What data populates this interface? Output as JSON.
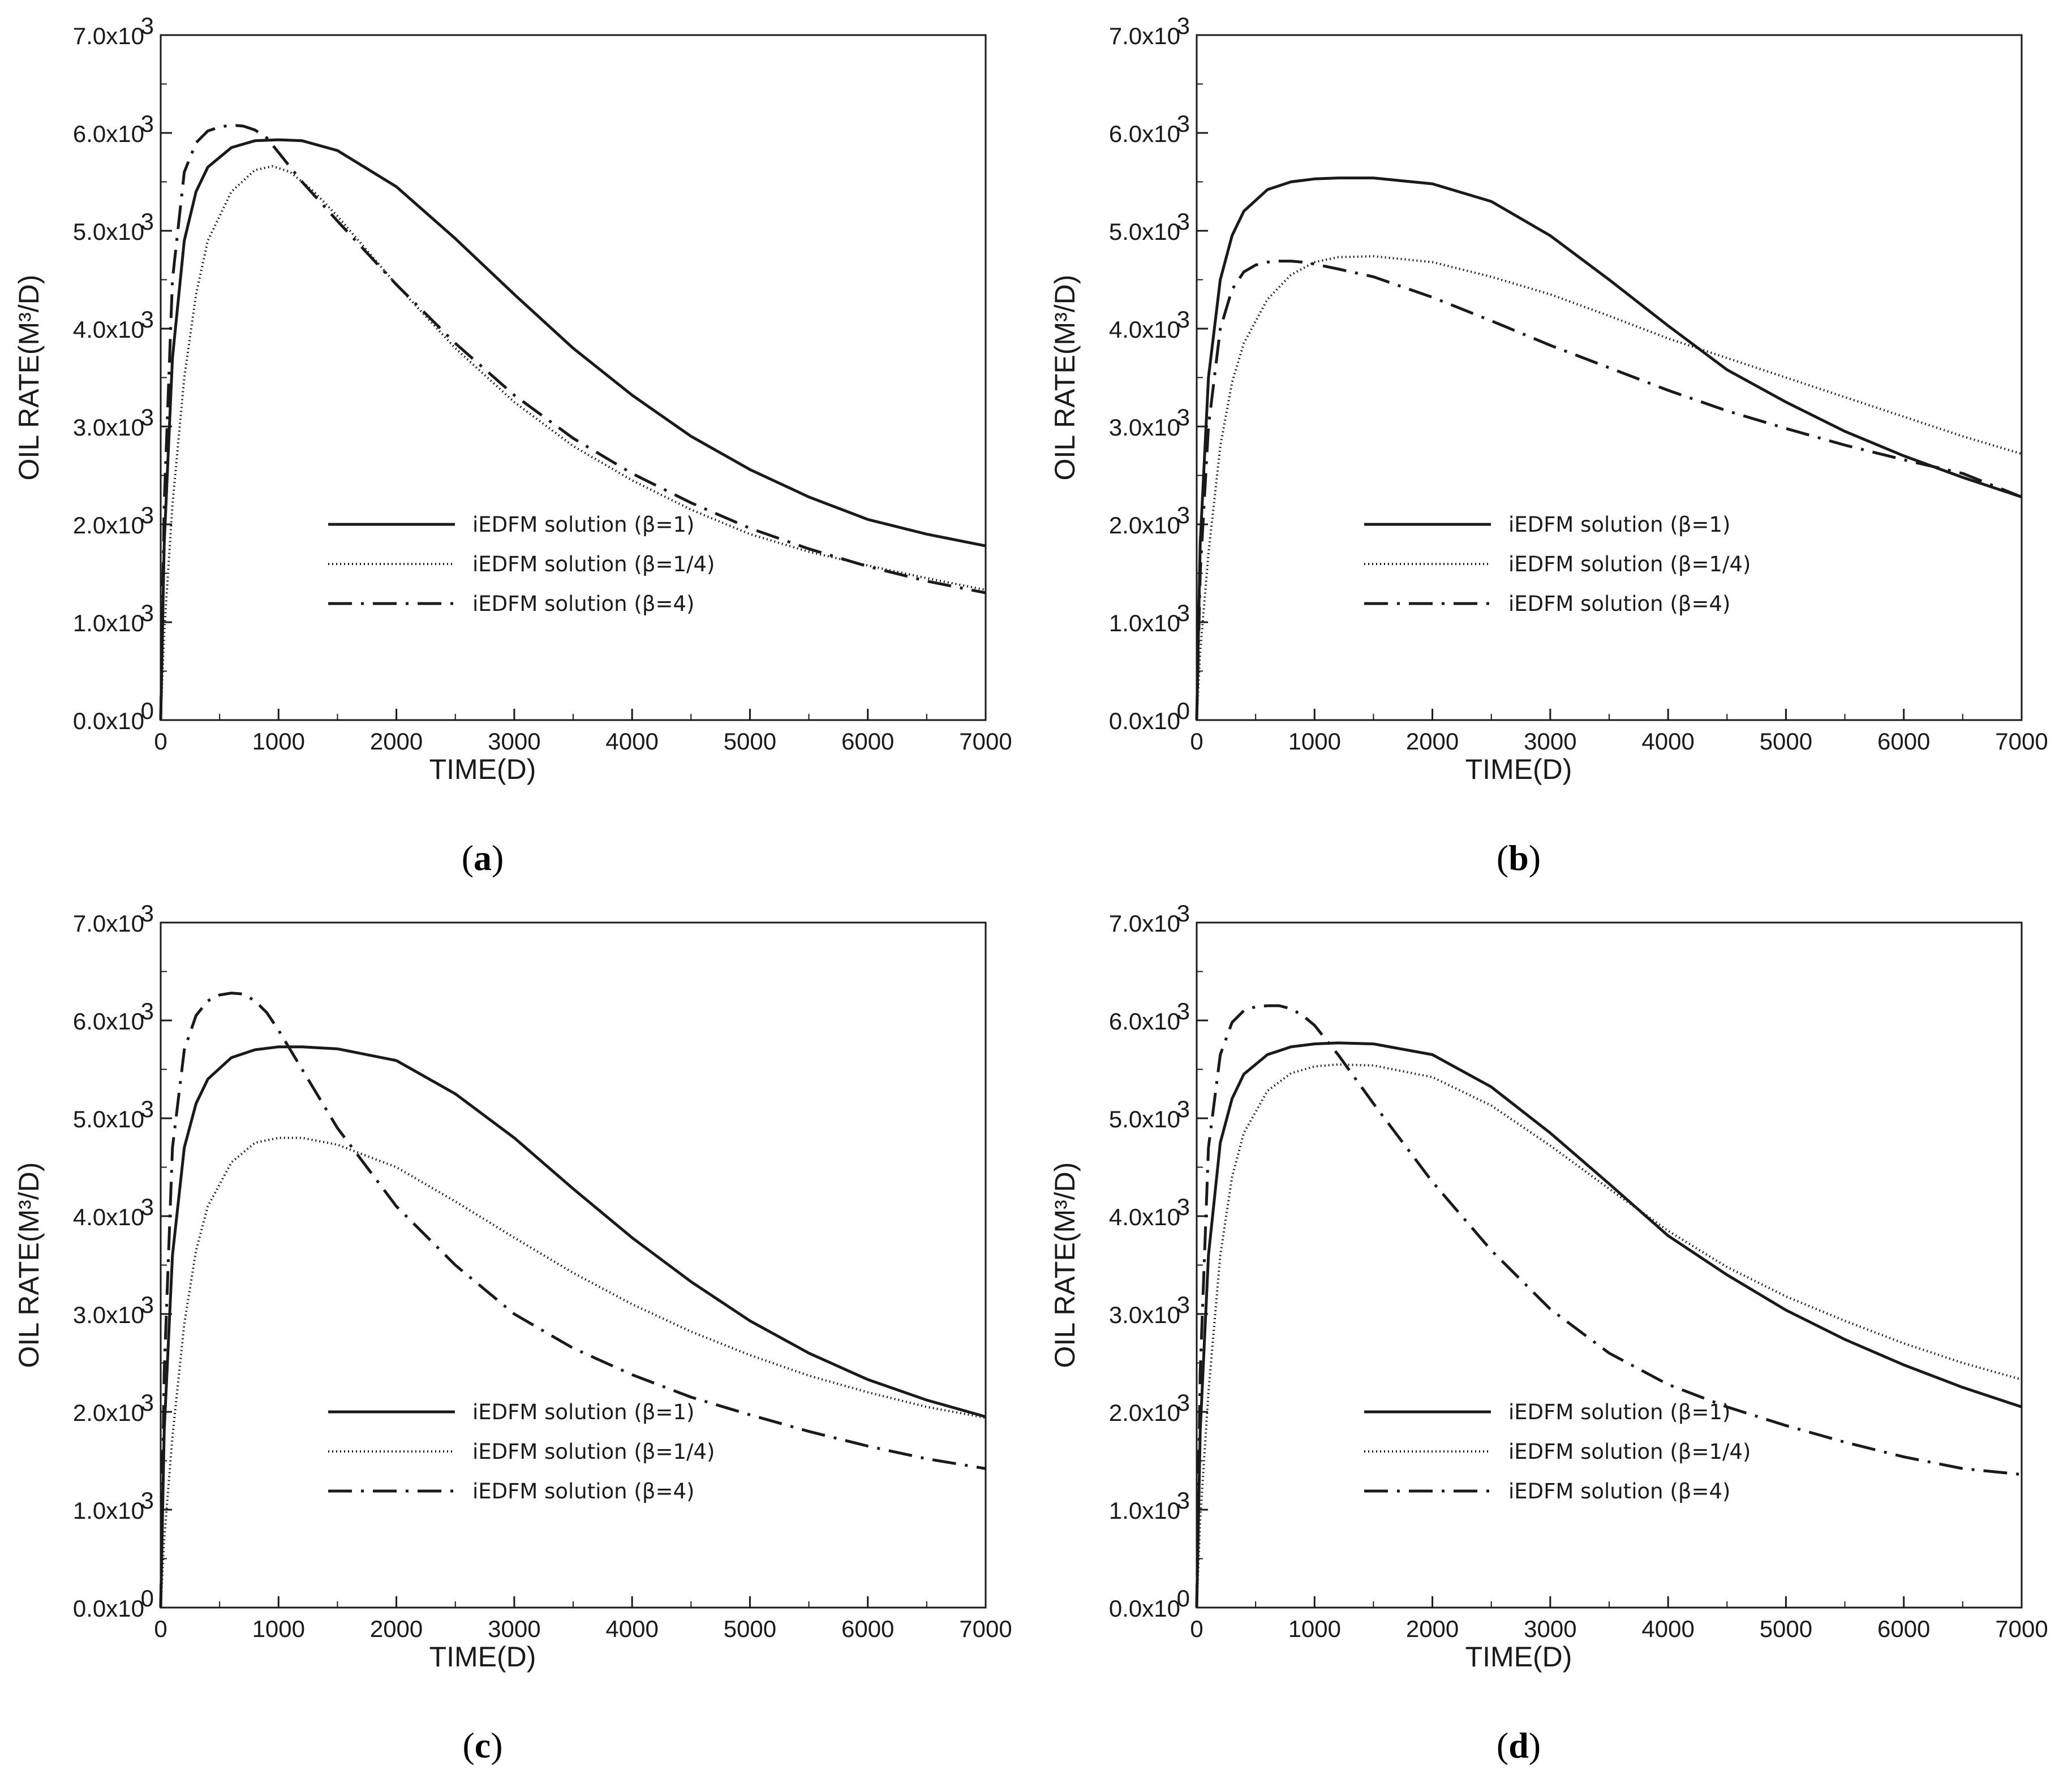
{
  "colors": {
    "line": "#1a1a1a",
    "background": "#ffffff"
  },
  "chart_data": [
    {
      "type": "line",
      "panel": "a",
      "caption": {
        "open": "(",
        "letter": "a",
        "close": ")"
      },
      "xlabel": "TIME(D)",
      "ylabel": "OIL RATE(M³/D)",
      "xlim": [
        0,
        7000
      ],
      "ylim": [
        0,
        7000
      ],
      "x_ticks": [
        "0",
        "1000",
        "2000",
        "3000",
        "4000",
        "5000",
        "6000",
        "7000"
      ],
      "y_ticks": [
        {
          "value": 0,
          "mant": "0.0x10",
          "exp": "0"
        },
        {
          "value": 1000,
          "mant": "1.0x10",
          "exp": "3"
        },
        {
          "value": 2000,
          "mant": "2.0x10",
          "exp": "3"
        },
        {
          "value": 3000,
          "mant": "3.0x10",
          "exp": "3"
        },
        {
          "value": 4000,
          "mant": "4.0x10",
          "exp": "3"
        },
        {
          "value": 5000,
          "mant": "5.0x10",
          "exp": "3"
        },
        {
          "value": 6000,
          "mant": "6.0x10",
          "exp": "3"
        },
        {
          "value": 7000,
          "mant": "7.0x10",
          "exp": "3"
        }
      ],
      "series": [
        {
          "name": "iEDFM solution (β=1)",
          "style": "solid",
          "x": [
            0,
            30,
            100,
            200,
            300,
            400,
            600,
            800,
            1000,
            1200,
            1500,
            2000,
            2500,
            3000,
            3500,
            4000,
            4500,
            5000,
            5500,
            6000,
            6500,
            7000
          ],
          "y": [
            0,
            1800,
            3700,
            4900,
            5400,
            5650,
            5850,
            5920,
            5930,
            5920,
            5820,
            5450,
            4920,
            4350,
            3800,
            3320,
            2900,
            2560,
            2280,
            2050,
            1900,
            1780
          ]
        },
        {
          "name": "iEDFM solution (β=1/4)",
          "style": "dotted",
          "x": [
            0,
            30,
            100,
            200,
            300,
            400,
            600,
            800,
            950,
            1100,
            1300,
            1500,
            2000,
            2500,
            3000,
            3500,
            4000,
            4500,
            5000,
            5500,
            6000,
            6500,
            7000
          ],
          "y": [
            0,
            900,
            2200,
            3500,
            4350,
            4900,
            5400,
            5620,
            5660,
            5600,
            5400,
            5150,
            4450,
            3800,
            3250,
            2800,
            2450,
            2150,
            1900,
            1720,
            1580,
            1450,
            1330
          ]
        },
        {
          "name": "iEDFM solution (β=4)",
          "style": "dashdot",
          "x": [
            0,
            30,
            100,
            200,
            300,
            400,
            500,
            600,
            700,
            800,
            900,
            1000,
            1200,
            1500,
            2000,
            2500,
            3000,
            3500,
            4000,
            4500,
            5000,
            5500,
            6000,
            6500,
            7000
          ],
          "y": [
            0,
            2200,
            4500,
            5600,
            5900,
            6020,
            6060,
            6080,
            6070,
            6030,
            5950,
            5800,
            5500,
            5100,
            4450,
            3850,
            3320,
            2880,
            2520,
            2220,
            1960,
            1750,
            1570,
            1420,
            1300
          ]
        }
      ]
    },
    {
      "type": "line",
      "panel": "b",
      "caption": {
        "open": "(",
        "letter": "b",
        "close": ")"
      },
      "xlabel": "TIME(D)",
      "ylabel": "OIL RATE(M³/D)",
      "xlim": [
        0,
        7000
      ],
      "ylim": [
        0,
        7000
      ],
      "x_ticks": [
        "0",
        "1000",
        "2000",
        "3000",
        "4000",
        "5000",
        "6000",
        "7000"
      ],
      "y_ticks": [
        {
          "value": 0,
          "mant": "0.0x10",
          "exp": "0"
        },
        {
          "value": 1000,
          "mant": "1.0x10",
          "exp": "3"
        },
        {
          "value": 2000,
          "mant": "2.0x10",
          "exp": "3"
        },
        {
          "value": 3000,
          "mant": "3.0x10",
          "exp": "3"
        },
        {
          "value": 4000,
          "mant": "4.0x10",
          "exp": "3"
        },
        {
          "value": 5000,
          "mant": "5.0x10",
          "exp": "3"
        },
        {
          "value": 6000,
          "mant": "6.0x10",
          "exp": "3"
        },
        {
          "value": 7000,
          "mant": "7.0x10",
          "exp": "3"
        }
      ],
      "series": [
        {
          "name": "iEDFM solution (β=1)",
          "style": "solid",
          "x": [
            0,
            30,
            100,
            200,
            300,
            400,
            600,
            800,
            1000,
            1200,
            1500,
            2000,
            2500,
            3000,
            3500,
            4000,
            4500,
            5000,
            5500,
            6000,
            6500,
            7000
          ],
          "y": [
            0,
            1800,
            3500,
            4500,
            4950,
            5200,
            5420,
            5500,
            5530,
            5540,
            5540,
            5480,
            5300,
            4950,
            4500,
            4030,
            3580,
            3250,
            2950,
            2700,
            2480,
            2280
          ]
        },
        {
          "name": "iEDFM solution (β=1/4)",
          "style": "dotted",
          "x": [
            0,
            30,
            100,
            200,
            300,
            400,
            600,
            800,
            1000,
            1200,
            1500,
            2000,
            2500,
            3000,
            3500,
            4000,
            4500,
            5000,
            5500,
            6000,
            6500,
            7000
          ],
          "y": [
            0,
            700,
            1700,
            2800,
            3450,
            3850,
            4300,
            4550,
            4680,
            4730,
            4740,
            4680,
            4530,
            4350,
            4130,
            3900,
            3700,
            3500,
            3300,
            3100,
            2900,
            2720
          ]
        },
        {
          "name": "iEDFM solution (β=4)",
          "style": "dashdot",
          "x": [
            0,
            30,
            100,
            200,
            300,
            400,
            500,
            600,
            700,
            800,
            900,
            1000,
            1200,
            1500,
            2000,
            2500,
            3000,
            3500,
            4000,
            4500,
            5000,
            5500,
            6000,
            6500,
            7000
          ],
          "y": [
            0,
            1500,
            3000,
            4000,
            4400,
            4580,
            4650,
            4680,
            4690,
            4690,
            4680,
            4660,
            4610,
            4530,
            4320,
            4080,
            3830,
            3600,
            3370,
            3160,
            2980,
            2810,
            2660,
            2520,
            2280
          ]
        }
      ]
    },
    {
      "type": "line",
      "panel": "c",
      "caption": {
        "open": "(",
        "letter": "c",
        "close": ")"
      },
      "xlabel": "TIME(D)",
      "ylabel": "OIL RATE(M³/D)",
      "xlim": [
        0,
        7000
      ],
      "ylim": [
        0,
        7000
      ],
      "x_ticks": [
        "0",
        "1000",
        "2000",
        "3000",
        "4000",
        "5000",
        "6000",
        "7000"
      ],
      "y_ticks": [
        {
          "value": 0,
          "mant": "0.0x10",
          "exp": "0"
        },
        {
          "value": 1000,
          "mant": "1.0x10",
          "exp": "3"
        },
        {
          "value": 2000,
          "mant": "2.0x10",
          "exp": "3"
        },
        {
          "value": 3000,
          "mant": "3.0x10",
          "exp": "3"
        },
        {
          "value": 4000,
          "mant": "4.0x10",
          "exp": "3"
        },
        {
          "value": 5000,
          "mant": "5.0x10",
          "exp": "3"
        },
        {
          "value": 6000,
          "mant": "6.0x10",
          "exp": "3"
        },
        {
          "value": 7000,
          "mant": "7.0x10",
          "exp": "3"
        }
      ],
      "series": [
        {
          "name": "iEDFM solution (β=1)",
          "style": "solid",
          "x": [
            0,
            30,
            100,
            200,
            300,
            400,
            600,
            800,
            1000,
            1200,
            1500,
            2000,
            2500,
            3000,
            3500,
            4000,
            4500,
            5000,
            5500,
            6000,
            6500,
            7000
          ],
          "y": [
            0,
            1800,
            3600,
            4700,
            5150,
            5400,
            5620,
            5700,
            5730,
            5730,
            5710,
            5590,
            5250,
            4800,
            4280,
            3780,
            3330,
            2930,
            2600,
            2330,
            2120,
            1950
          ]
        },
        {
          "name": "iEDFM solution (β=1/4)",
          "style": "dotted",
          "x": [
            0,
            30,
            100,
            200,
            300,
            400,
            600,
            800,
            1000,
            1200,
            1500,
            2000,
            2500,
            3000,
            3500,
            4000,
            4500,
            5000,
            5500,
            6000,
            6500,
            7000
          ],
          "y": [
            0,
            700,
            1750,
            2900,
            3650,
            4100,
            4550,
            4750,
            4800,
            4800,
            4730,
            4500,
            4150,
            3780,
            3420,
            3100,
            2820,
            2580,
            2370,
            2200,
            2050,
            1940
          ]
        },
        {
          "name": "iEDFM solution (β=4)",
          "style": "dashdot",
          "x": [
            0,
            30,
            100,
            200,
            300,
            400,
            500,
            600,
            700,
            800,
            900,
            1000,
            1200,
            1500,
            2000,
            2500,
            3000,
            3500,
            4000,
            4500,
            5000,
            5500,
            6000,
            6500,
            7000
          ],
          "y": [
            0,
            2400,
            4700,
            5700,
            6050,
            6200,
            6260,
            6280,
            6270,
            6200,
            6080,
            5900,
            5500,
            4900,
            4100,
            3500,
            3000,
            2650,
            2380,
            2150,
            1970,
            1800,
            1650,
            1520,
            1420
          ]
        }
      ]
    },
    {
      "type": "line",
      "panel": "d",
      "caption": {
        "open": "(",
        "letter": "d",
        "close": ")"
      },
      "xlabel": "TIME(D)",
      "ylabel": "OIL RATE(M³/D)",
      "xlim": [
        0,
        7000
      ],
      "ylim": [
        0,
        7000
      ],
      "x_ticks": [
        "0",
        "1000",
        "2000",
        "3000",
        "4000",
        "5000",
        "6000",
        "7000"
      ],
      "y_ticks": [
        {
          "value": 0,
          "mant": "0.0x10",
          "exp": "0"
        },
        {
          "value": 1000,
          "mant": "1.0x10",
          "exp": "3"
        },
        {
          "value": 2000,
          "mant": "2.0x10",
          "exp": "3"
        },
        {
          "value": 3000,
          "mant": "3.0x10",
          "exp": "3"
        },
        {
          "value": 4000,
          "mant": "4.0x10",
          "exp": "3"
        },
        {
          "value": 5000,
          "mant": "5.0x10",
          "exp": "3"
        },
        {
          "value": 6000,
          "mant": "6.0x10",
          "exp": "3"
        },
        {
          "value": 7000,
          "mant": "7.0x10",
          "exp": "3"
        }
      ],
      "series": [
        {
          "name": "iEDFM solution (β=1)",
          "style": "solid",
          "x": [
            0,
            30,
            100,
            200,
            300,
            400,
            600,
            800,
            1000,
            1200,
            1500,
            2000,
            2500,
            3000,
            3500,
            4000,
            4500,
            5000,
            5500,
            6000,
            6500,
            7000
          ],
          "y": [
            0,
            1800,
            3600,
            4750,
            5200,
            5450,
            5650,
            5730,
            5760,
            5770,
            5760,
            5650,
            5320,
            4850,
            4330,
            3800,
            3400,
            3040,
            2740,
            2480,
            2250,
            2050
          ]
        },
        {
          "name": "iEDFM solution (β=1/4)",
          "style": "dotted",
          "x": [
            0,
            30,
            100,
            200,
            300,
            400,
            600,
            800,
            1000,
            1200,
            1500,
            2000,
            2500,
            3000,
            3500,
            4000,
            4500,
            5000,
            5500,
            6000,
            6500,
            7000
          ],
          "y": [
            0,
            900,
            2200,
            3600,
            4400,
            4850,
            5280,
            5460,
            5530,
            5550,
            5540,
            5420,
            5130,
            4720,
            4280,
            3850,
            3480,
            3180,
            2930,
            2700,
            2500,
            2330
          ]
        },
        {
          "name": "iEDFM solution (β=4)",
          "style": "dashdot",
          "x": [
            0,
            30,
            100,
            200,
            300,
            400,
            500,
            600,
            700,
            800,
            900,
            1000,
            1200,
            1500,
            2000,
            2500,
            3000,
            3500,
            4000,
            4500,
            5000,
            5500,
            6000,
            6500,
            7000
          ],
          "y": [
            0,
            2400,
            4700,
            5650,
            5980,
            6100,
            6140,
            6150,
            6150,
            6120,
            6050,
            5950,
            5650,
            5150,
            4350,
            3650,
            3050,
            2600,
            2280,
            2050,
            1860,
            1690,
            1540,
            1420,
            1360
          ]
        }
      ]
    }
  ]
}
